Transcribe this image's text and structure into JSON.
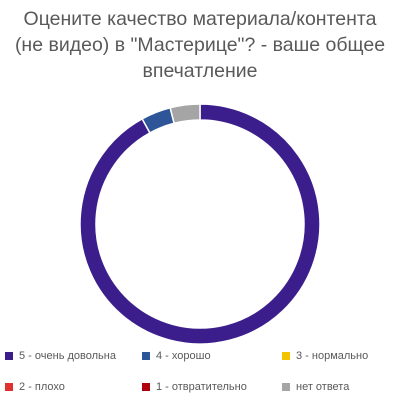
{
  "chart_data": {
    "type": "pie",
    "variant": "donut",
    "title_lines": [
      "Оцените качество материала/контента",
      "(не видео) в \"Мастерице\"? - ваше общее",
      "впечатление"
    ],
    "categories": [
      "5 - очень довольна",
      "4 - хорошо",
      "3 - нормально",
      "2 - плохо",
      "1 - отвратительно",
      "нет ответа"
    ],
    "values": [
      92,
      4,
      0,
      0,
      0,
      4
    ],
    "colors": [
      "#3B1E8C",
      "#2E5597",
      "#F2C400",
      "#E03030",
      "#B00010",
      "#A5A5A5"
    ],
    "legend_position": "bottom"
  }
}
